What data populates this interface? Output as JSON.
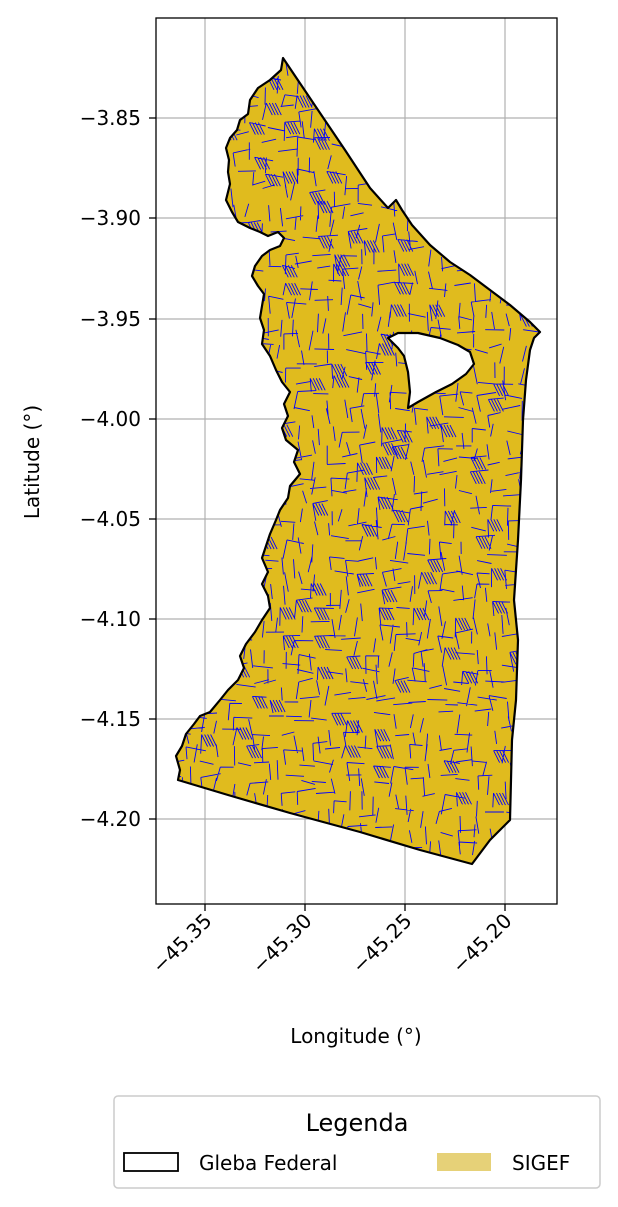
{
  "map": {
    "xlabel": "Longitude (°)",
    "ylabel": "Latitude (°)",
    "x_ticks": [
      "−45.35",
      "−45.30",
      "−45.25",
      "−45.20"
    ],
    "y_ticks": [
      "−3.85",
      "−3.90",
      "−3.95",
      "−4.00",
      "−4.05",
      "−4.10",
      "−4.15",
      "−4.20"
    ],
    "x_tick_values": [
      -45.35,
      -45.3,
      -45.25,
      -45.2
    ],
    "y_tick_values": [
      -3.85,
      -3.9,
      -3.95,
      -4.0,
      -4.05,
      -4.1,
      -4.15,
      -4.2
    ],
    "x_range": [
      -45.374,
      -45.174
    ],
    "y_range": [
      -4.2425,
      -3.7995
    ],
    "grid": true
  },
  "legend": {
    "title": "Legenda",
    "items": [
      {
        "label": "Gleba Federal",
        "style": "outline",
        "color": "#000000"
      },
      {
        "label": "SIGEF",
        "style": "fill",
        "color": "#e6d178"
      }
    ]
  },
  "colors": {
    "fill": "#e0bb1e",
    "parcel_lines": "#0000ff",
    "boundary": "#000000",
    "grid": "#b0b0b0"
  }
}
